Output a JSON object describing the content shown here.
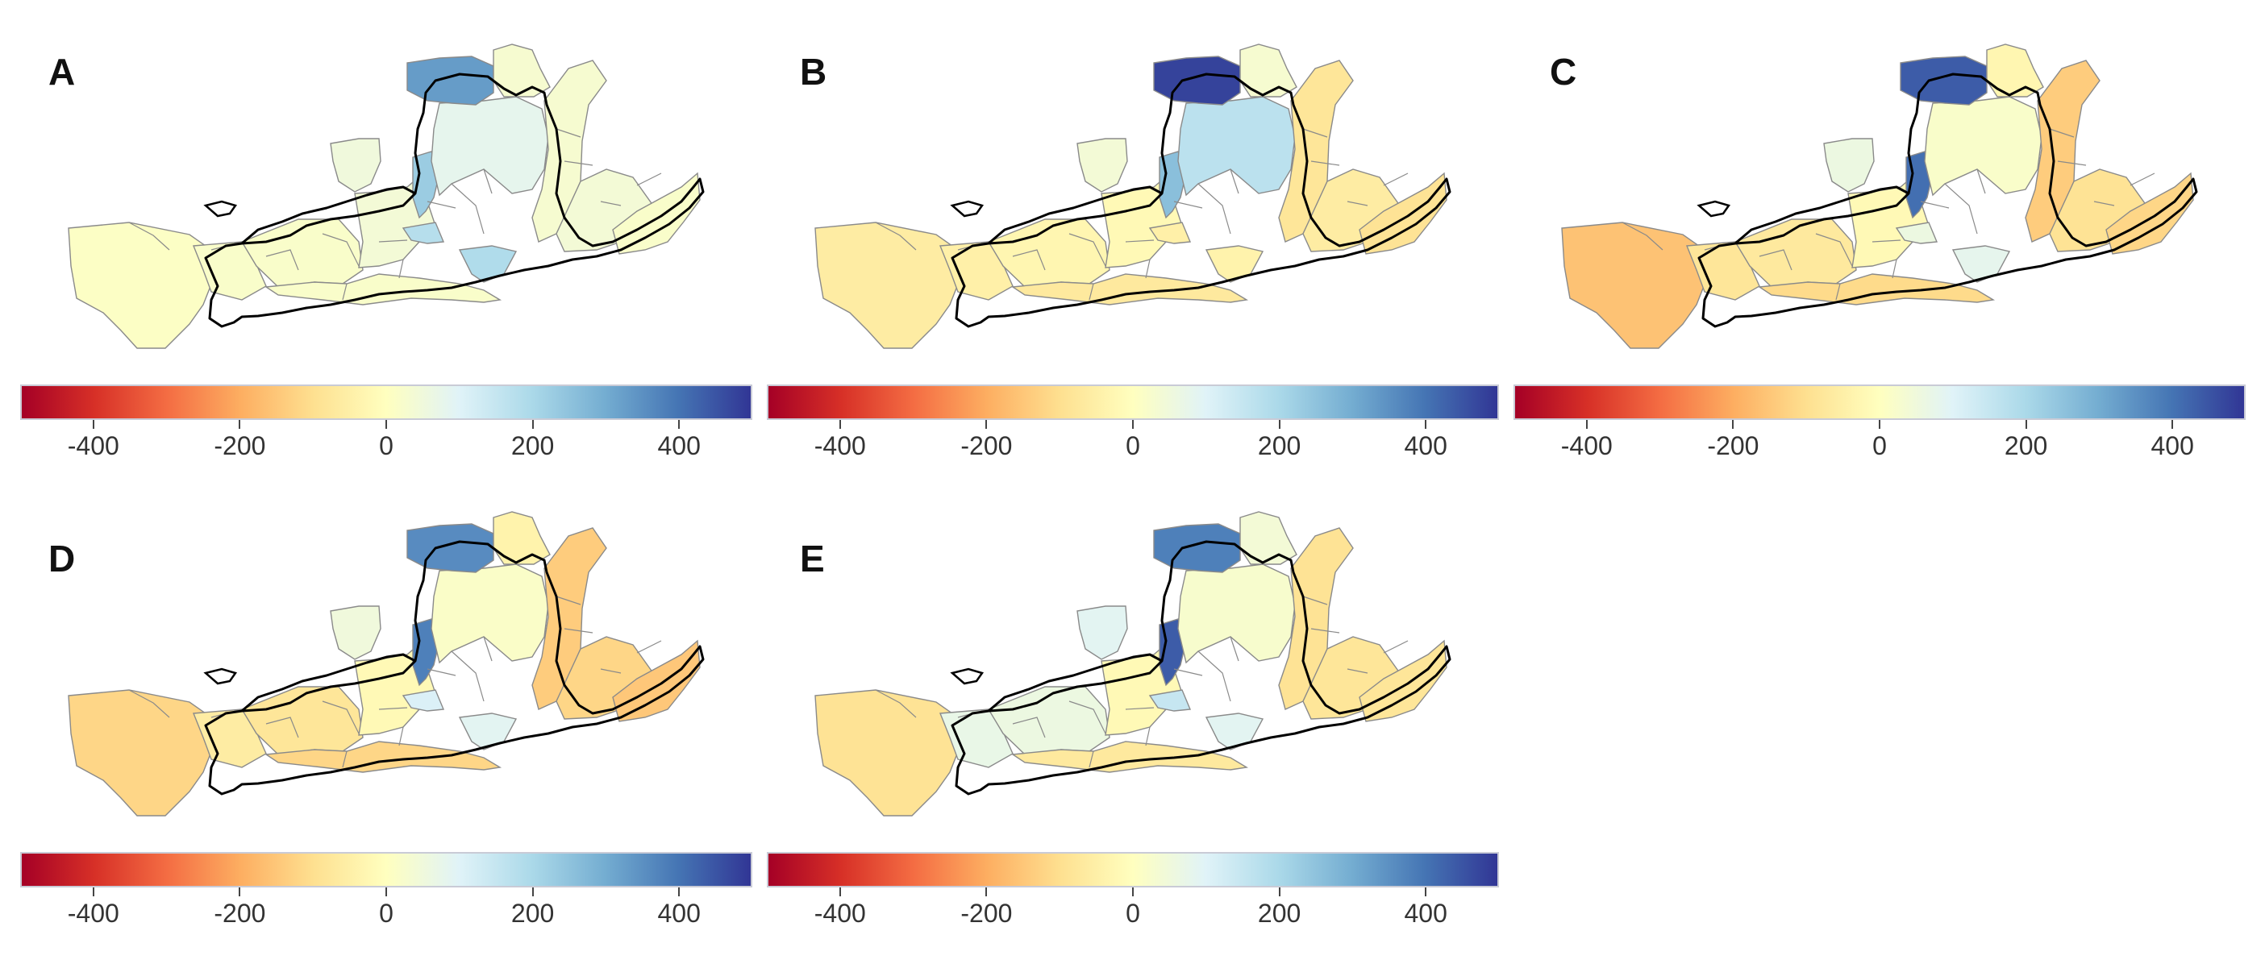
{
  "figure": {
    "colormap": [
      "#a50026",
      "#d73027",
      "#f46d43",
      "#fdae61",
      "#fee090",
      "#ffffbf",
      "#e0f3f8",
      "#abd9e9",
      "#74add1",
      "#4575b4",
      "#313695"
    ],
    "boundary_color": "#000000",
    "region_edge_color": "#8a8a8a"
  },
  "colorbar": {
    "min": -500,
    "max": 500,
    "ticks": [
      -400,
      -200,
      0,
      200,
      400
    ],
    "tick_labels": [
      "-400",
      "-200",
      "0",
      "200",
      "400"
    ]
  },
  "panels": [
    {
      "label": "A",
      "regions": {
        "northbend": 330,
        "ordos": 80,
        "central": 40,
        "ningxia": 50,
        "midwest": 20,
        "westbig": 10,
        "southrow": 20,
        "eastA": 30,
        "eastB": 40,
        "east": 20,
        "nloop": 30,
        "midspot": 230,
        "ribbon": 180,
        "ribbon2": 190,
        "westW": 20
      }
    },
    {
      "label": "B",
      "regions": {
        "northbend": 480,
        "ordos": 170,
        "central": -20,
        "ningxia": 40,
        "midwest": -30,
        "westbig": -60,
        "southrow": -70,
        "eastA": -80,
        "eastB": -60,
        "east": -90,
        "nloop": 30,
        "midspot": 260,
        "ribbon": -50,
        "ribbon2": -40,
        "westW": -50
      }
    },
    {
      "label": "C",
      "regions": {
        "northbend": 440,
        "ordos": 20,
        "central": -20,
        "ningxia": 60,
        "midwest": -70,
        "westbig": -160,
        "southrow": -110,
        "eastA": -140,
        "eastB": -90,
        "east": -120,
        "nloop": -30,
        "midspot": 410,
        "ribbon": 60,
        "ribbon2": 80,
        "westW": -80
      }
    },
    {
      "label": "D",
      "regions": {
        "northbend": 360,
        "ordos": 15,
        "central": -20,
        "ningxia": 50,
        "midwest": -80,
        "westbig": -120,
        "southrow": -120,
        "eastA": -140,
        "eastB": -120,
        "east": -150,
        "nloop": -40,
        "midspot": 380,
        "ribbon": 110,
        "ribbon2": 90,
        "westW": -60
      }
    },
    {
      "label": "E",
      "regions": {
        "northbend": 380,
        "ordos": 25,
        "central": -20,
        "ningxia": 90,
        "midwest": 60,
        "westbig": -90,
        "southrow": -70,
        "eastA": -90,
        "eastB": -80,
        "east": -80,
        "nloop": 40,
        "midspot": 440,
        "ribbon": 150,
        "ribbon2": 90,
        "westW": 70
      }
    }
  ]
}
